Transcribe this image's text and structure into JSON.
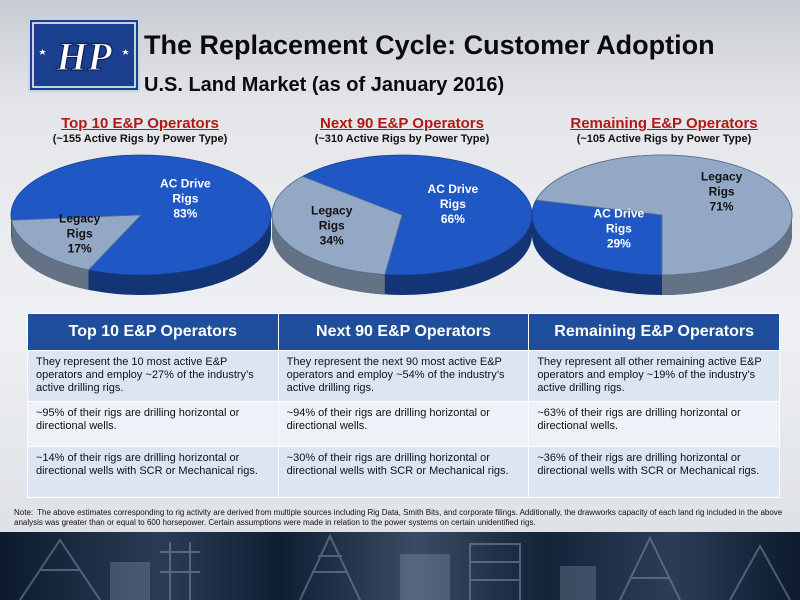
{
  "header": {
    "logo_text": "HP",
    "title": "The Replacement Cycle: Customer Adoption",
    "subtitle": "U.S. Land Market (as of January 2016)"
  },
  "colors": {
    "ac_drive": "#1f58c4",
    "legacy": "#93a8c4",
    "title_red": "#b01a14",
    "table_header": "#1f4f9c"
  },
  "chart_data": [
    {
      "type": "pie",
      "title": "Top 10 E&P Operators",
      "subtitle": "(~155 Active Rigs by Power Type)",
      "slices": [
        {
          "line1": "AC Drive",
          "line2": "Rigs",
          "pct_label": "83%",
          "value": 83
        },
        {
          "line1": "Legacy",
          "line2": "Rigs",
          "pct_label": "17%",
          "value": 17
        }
      ]
    },
    {
      "type": "pie",
      "title": "Next 90 E&P Operators",
      "subtitle": "(~310 Active Rigs by Power Type)",
      "slices": [
        {
          "line1": "AC Drive",
          "line2": "Rigs",
          "pct_label": "66%",
          "value": 66
        },
        {
          "line1": "Legacy",
          "line2": "Rigs",
          "pct_label": "34%",
          "value": 34
        }
      ]
    },
    {
      "type": "pie",
      "title": "Remaining E&P Operators",
      "subtitle": "(~105 Active Rigs by Power Type)",
      "slices": [
        {
          "line1": "AC Drive",
          "line2": "Rigs",
          "pct_label": "29%",
          "value": 29
        },
        {
          "line1": "Legacy",
          "line2": "Rigs",
          "pct_label": "71%",
          "value": 71
        }
      ]
    }
  ],
  "table": {
    "headers": [
      "Top 10 E&P Operators",
      "Next 90 E&P Operators",
      "Remaining E&P Operators"
    ],
    "rows": [
      [
        "They represent the 10 most active E&P operators and employ ~27% of the industry’s active drilling rigs.",
        "They represent the next 90 most active E&P operators and employ ~54% of the industry’s active drilling rigs.",
        "They represent all other remaining active E&P operators and employ ~19% of the industry’s active drilling rigs."
      ],
      [
        "~95% of their rigs are drilling horizontal or directional wells.",
        "~94% of their rigs are drilling horizontal or directional wells.",
        "~63% of their rigs are drilling horizontal or directional wells."
      ],
      [
        "~14% of their rigs are drilling horizontal or directional wells with SCR or Mechanical rigs.",
        "~30% of their rigs are drilling horizontal or directional wells with SCR or Mechanical rigs.",
        "~36% of their rigs are drilling horizontal or directional wells with SCR or Mechanical rigs."
      ]
    ]
  },
  "note": {
    "label": "Note:",
    "text": "The above estimates corresponding to rig activity are derived from multiple sources including Rig Data, Smith Bits, and corporate filings. Additionally, the drawworks capacity of each land rig included in the above analysis was greater than or equal to 600 horsepower. Certain assumptions were made in relation to the power systems on certain unidentified rigs."
  }
}
